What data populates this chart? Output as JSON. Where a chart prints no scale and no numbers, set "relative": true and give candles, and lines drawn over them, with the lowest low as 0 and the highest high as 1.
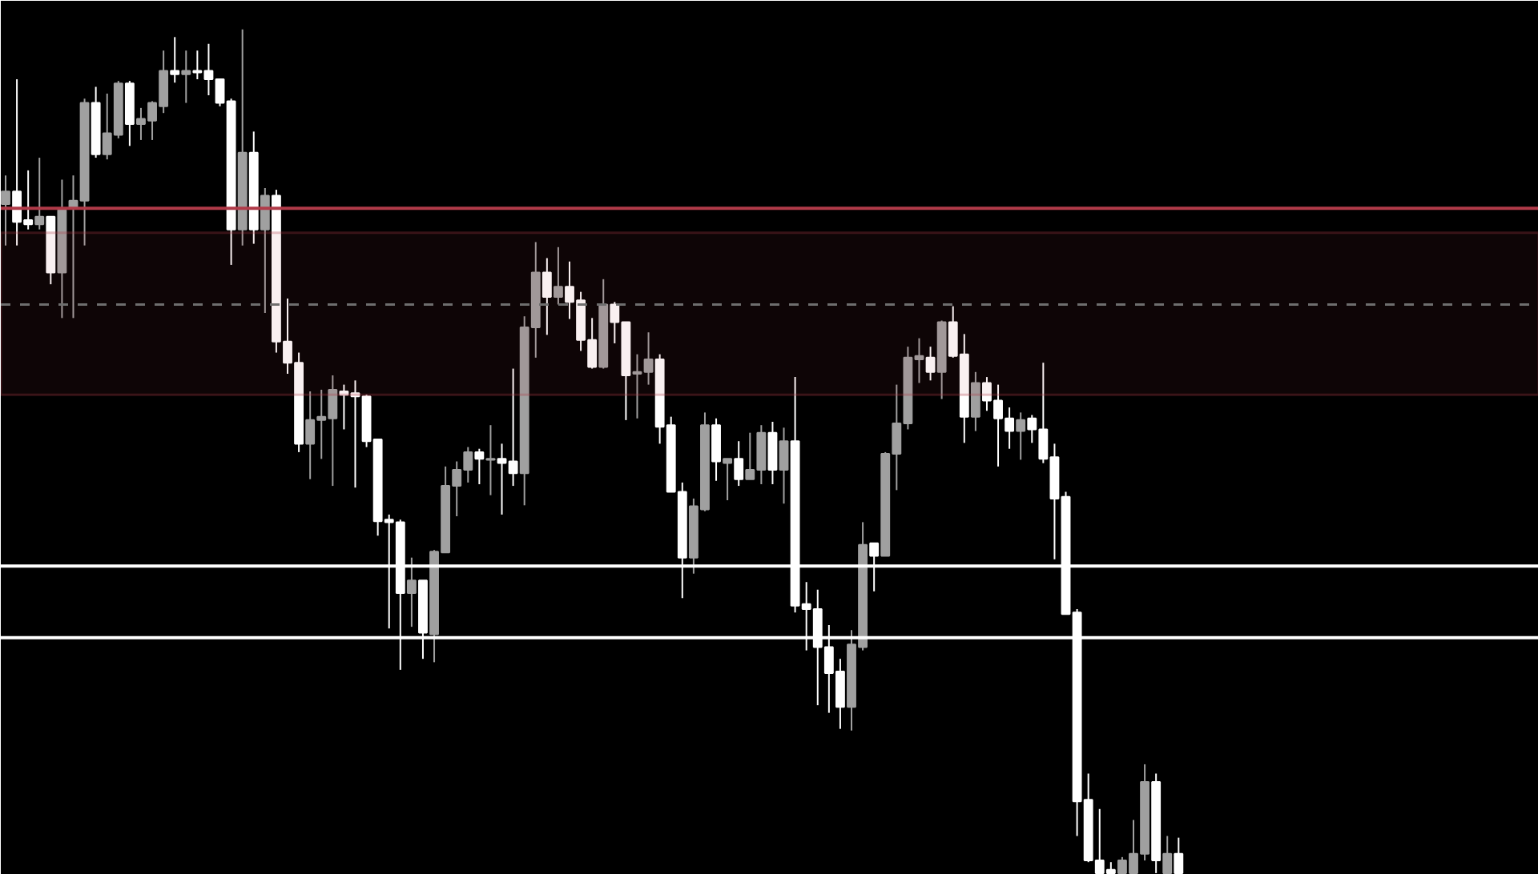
{
  "chart_data": {
    "type": "candlestick",
    "relative": true,
    "categories": [
      null,
      null,
      null,
      null,
      null,
      null,
      null,
      null,
      null,
      null,
      null,
      null,
      null,
      null,
      null,
      null,
      null,
      null,
      null,
      null,
      null,
      null,
      null,
      null,
      null,
      null,
      null,
      null,
      null,
      null,
      null,
      null,
      null,
      null,
      null,
      null,
      null,
      null,
      null,
      null,
      null,
      null,
      null,
      null,
      null,
      null,
      null,
      null,
      null,
      null,
      null,
      null,
      null,
      null,
      null,
      null,
      null,
      null,
      null,
      null,
      null,
      null,
      null,
      null,
      null,
      null,
      null,
      null,
      null,
      null,
      null,
      null,
      null,
      null,
      null,
      null,
      null,
      null,
      null,
      null,
      null,
      null,
      null,
      null,
      null,
      null,
      null,
      null,
      null,
      null,
      null,
      null,
      null,
      null,
      null,
      null,
      null,
      null,
      null,
      null,
      null,
      null,
      null,
      null,
      null
    ],
    "ohlc": [
      [
        0.793,
        0.827,
        0.744,
        0.808
      ],
      [
        0.808,
        0.941,
        0.744,
        0.772
      ],
      [
        0.774,
        0.833,
        0.763,
        0.769
      ],
      [
        0.769,
        0.848,
        0.763,
        0.778
      ],
      [
        0.778,
        0.778,
        0.698,
        0.712
      ],
      [
        0.712,
        0.822,
        0.658,
        0.786
      ],
      [
        0.789,
        0.827,
        0.658,
        0.797
      ],
      [
        0.797,
        0.918,
        0.744,
        0.913
      ],
      [
        0.913,
        0.932,
        0.848,
        0.852
      ],
      [
        0.852,
        0.924,
        0.846,
        0.877
      ],
      [
        0.875,
        0.939,
        0.871,
        0.936
      ],
      [
        0.936,
        0.939,
        0.862,
        0.888
      ],
      [
        0.888,
        0.907,
        0.869,
        0.894
      ],
      [
        0.892,
        0.915,
        0.869,
        0.913
      ],
      [
        0.909,
        0.975,
        0.901,
        0.951
      ],
      [
        0.951,
        0.991,
        0.937,
        0.947
      ],
      [
        0.947,
        0.975,
        0.913,
        0.951
      ],
      [
        0.951,
        0.975,
        0.941,
        0.949
      ],
      [
        0.951,
        0.983,
        0.922,
        0.941
      ],
      [
        0.941,
        0.941,
        0.909,
        0.913
      ],
      [
        0.915,
        0.918,
        0.721,
        0.763
      ],
      [
        0.763,
        1.0,
        0.744,
        0.854
      ],
      [
        0.854,
        0.879,
        0.746,
        0.763
      ],
      [
        0.763,
        0.812,
        0.664,
        0.803
      ],
      [
        0.803,
        0.81,
        0.617,
        0.63
      ],
      [
        0.63,
        0.681,
        0.592,
        0.605
      ],
      [
        0.605,
        0.617,
        0.499,
        0.509
      ],
      [
        0.509,
        0.571,
        0.467,
        0.537
      ],
      [
        0.537,
        0.573,
        0.491,
        0.541
      ],
      [
        0.539,
        0.59,
        0.459,
        0.573
      ],
      [
        0.571,
        0.579,
        0.526,
        0.567
      ],
      [
        0.569,
        0.584,
        0.457,
        0.565
      ],
      [
        0.565,
        0.567,
        0.505,
        0.512
      ],
      [
        0.514,
        0.514,
        0.4,
        0.417
      ],
      [
        0.419,
        0.425,
        0.29,
        0.416
      ],
      [
        0.416,
        0.419,
        0.241,
        0.332
      ],
      [
        0.332,
        0.374,
        0.292,
        0.347
      ],
      [
        0.347,
        0.347,
        0.254,
        0.285
      ],
      [
        0.283,
        0.383,
        0.25,
        0.381
      ],
      [
        0.38,
        0.482,
        0.38,
        0.459
      ],
      [
        0.459,
        0.488,
        0.423,
        0.478
      ],
      [
        0.478,
        0.505,
        0.463,
        0.499
      ],
      [
        0.499,
        0.503,
        0.461,
        0.491
      ],
      [
        0.49,
        0.531,
        0.448,
        0.491
      ],
      [
        0.491,
        0.509,
        0.425,
        0.486
      ],
      [
        0.488,
        0.598,
        0.459,
        0.474
      ],
      [
        0.474,
        0.66,
        0.436,
        0.647
      ],
      [
        0.647,
        0.748,
        0.611,
        0.712
      ],
      [
        0.712,
        0.729,
        0.638,
        0.683
      ],
      [
        0.683,
        0.742,
        0.674,
        0.695
      ],
      [
        0.695,
        0.725,
        0.657,
        0.677
      ],
      [
        0.679,
        0.689,
        0.619,
        0.632
      ],
      [
        0.632,
        0.658,
        0.598,
        0.6
      ],
      [
        0.6,
        0.704,
        0.598,
        0.674
      ],
      [
        0.674,
        0.677,
        0.628,
        0.653
      ],
      [
        0.653,
        0.653,
        0.537,
        0.59
      ],
      [
        0.592,
        0.615,
        0.539,
        0.594
      ],
      [
        0.594,
        0.641,
        0.579,
        0.609
      ],
      [
        0.609,
        0.615,
        0.509,
        0.529
      ],
      [
        0.531,
        0.541,
        0.452,
        0.452
      ],
      [
        0.452,
        0.463,
        0.326,
        0.374
      ],
      [
        0.374,
        0.444,
        0.355,
        0.435
      ],
      [
        0.431,
        0.546,
        0.429,
        0.531
      ],
      [
        0.531,
        0.539,
        0.465,
        0.488
      ],
      [
        0.486,
        0.491,
        0.442,
        0.491
      ],
      [
        0.491,
        0.512,
        0.459,
        0.467
      ],
      [
        0.467,
        0.522,
        0.467,
        0.478
      ],
      [
        0.478,
        0.531,
        0.461,
        0.522
      ],
      [
        0.522,
        0.535,
        0.461,
        0.478
      ],
      [
        0.478,
        0.528,
        0.438,
        0.512
      ],
      [
        0.512,
        0.588,
        0.309,
        0.317
      ],
      [
        0.319,
        0.345,
        0.264,
        0.313
      ],
      [
        0.313,
        0.336,
        0.199,
        0.268
      ],
      [
        0.268,
        0.294,
        0.19,
        0.237
      ],
      [
        0.239,
        0.254,
        0.171,
        0.197
      ],
      [
        0.197,
        0.288,
        0.169,
        0.271
      ],
      [
        0.268,
        0.416,
        0.264,
        0.389
      ],
      [
        0.391,
        0.391,
        0.334,
        0.376
      ],
      [
        0.376,
        0.499,
        0.376,
        0.497
      ],
      [
        0.497,
        0.579,
        0.454,
        0.533
      ],
      [
        0.533,
        0.624,
        0.526,
        0.611
      ],
      [
        0.609,
        0.634,
        0.581,
        0.613
      ],
      [
        0.611,
        0.624,
        0.584,
        0.594
      ],
      [
        0.594,
        0.655,
        0.562,
        0.653
      ],
      [
        0.653,
        0.672,
        0.611,
        0.613
      ],
      [
        0.615,
        0.639,
        0.51,
        0.541
      ],
      [
        0.541,
        0.594,
        0.524,
        0.581
      ],
      [
        0.581,
        0.588,
        0.548,
        0.56
      ],
      [
        0.56,
        0.579,
        0.482,
        0.539
      ],
      [
        0.539,
        0.552,
        0.503,
        0.524
      ],
      [
        0.524,
        0.546,
        0.49,
        0.537
      ],
      [
        0.539,
        0.543,
        0.51,
        0.526
      ],
      [
        0.526,
        0.605,
        0.486,
        0.491
      ],
      [
        0.493,
        0.509,
        0.372,
        0.444
      ],
      [
        0.446,
        0.452,
        0.307,
        0.307
      ],
      [
        0.309,
        0.313,
        0.044,
        0.085
      ],
      [
        0.087,
        0.118,
        0.013,
        0.015
      ],
      [
        0.015,
        0.076,
        0.0,
        0.0
      ],
      [
        0.004,
        0.013,
        0.0,
        0.0
      ],
      [
        0.0,
        0.019,
        0.0,
        0.015
      ],
      [
        0.0,
        0.063,
        0.0,
        0.023
      ],
      [
        0.023,
        0.129,
        0.015,
        0.108
      ],
      [
        0.108,
        0.118,
        0.0,
        0.015
      ],
      [
        0.0,
        0.044,
        0.0,
        0.023
      ],
      [
        0.023,
        0.042,
        0.0,
        0.0
      ]
    ],
    "colors": [
      "#a0a0a0",
      "#ffffff",
      "#ffffff",
      "#a0a0a0",
      "#ffffff",
      "#a0a0a0",
      "#a0a0a0",
      "#a0a0a0",
      "#ffffff",
      "#a0a0a0",
      "#a0a0a0",
      "#ffffff",
      "#a0a0a0",
      "#a0a0a0",
      "#a0a0a0",
      "#ffffff",
      "#a0a0a0",
      "#ffffff",
      "#ffffff",
      "#ffffff",
      "#ffffff",
      "#a0a0a0",
      "#ffffff",
      "#a0a0a0",
      "#ffffff",
      "#ffffff",
      "#ffffff",
      "#a0a0a0",
      "#a0a0a0",
      "#a0a0a0",
      "#ffffff",
      "#ffffff",
      "#ffffff",
      "#ffffff",
      "#ffffff",
      "#ffffff",
      "#a0a0a0",
      "#ffffff",
      "#a0a0a0",
      "#a0a0a0",
      "#a0a0a0",
      "#a0a0a0",
      "#ffffff",
      "#a0a0a0",
      "#ffffff",
      "#ffffff",
      "#a0a0a0",
      "#a0a0a0",
      "#ffffff",
      "#a0a0a0",
      "#ffffff",
      "#ffffff",
      "#ffffff",
      "#a0a0a0",
      "#ffffff",
      "#ffffff",
      "#a0a0a0",
      "#a0a0a0",
      "#ffffff",
      "#ffffff",
      "#ffffff",
      "#a0a0a0",
      "#a0a0a0",
      "#ffffff",
      "#a0a0a0",
      "#ffffff",
      "#a0a0a0",
      "#a0a0a0",
      "#ffffff",
      "#a0a0a0",
      "#ffffff",
      "#ffffff",
      "#ffffff",
      "#ffffff",
      "#ffffff",
      "#a0a0a0",
      "#a0a0a0",
      "#ffffff",
      "#a0a0a0",
      "#a0a0a0",
      "#a0a0a0",
      "#a0a0a0",
      "#ffffff",
      "#a0a0a0",
      "#ffffff",
      "#ffffff",
      "#a0a0a0",
      "#ffffff",
      "#ffffff",
      "#ffffff",
      "#a0a0a0",
      "#ffffff",
      "#ffffff",
      "#ffffff",
      "#ffffff",
      "#ffffff",
      "#ffffff",
      "#ffffff",
      "#ffffff",
      "#a0a0a0",
      "#a0a0a0",
      "#a0a0a0",
      "#ffffff",
      "#a0a0a0",
      "#ffffff"
    ],
    "ref_lines": [
      {
        "axis": "y",
        "value": 0.788,
        "color": "#b03a48",
        "line_style": "solid"
      },
      {
        "axis": "y",
        "value": 0.674,
        "color": "#6e6e6e",
        "line_style": "dashed"
      },
      {
        "axis": "y",
        "value": 0.364,
        "color": "#ffffff",
        "line_style": "solid"
      },
      {
        "axis": "y",
        "value": 0.279,
        "color": "#ffffff",
        "line_style": "solid"
      }
    ],
    "bands": [
      {
        "axis": "y",
        "from": 0.567,
        "to": 0.759,
        "color": "#b03a48"
      }
    ]
  }
}
